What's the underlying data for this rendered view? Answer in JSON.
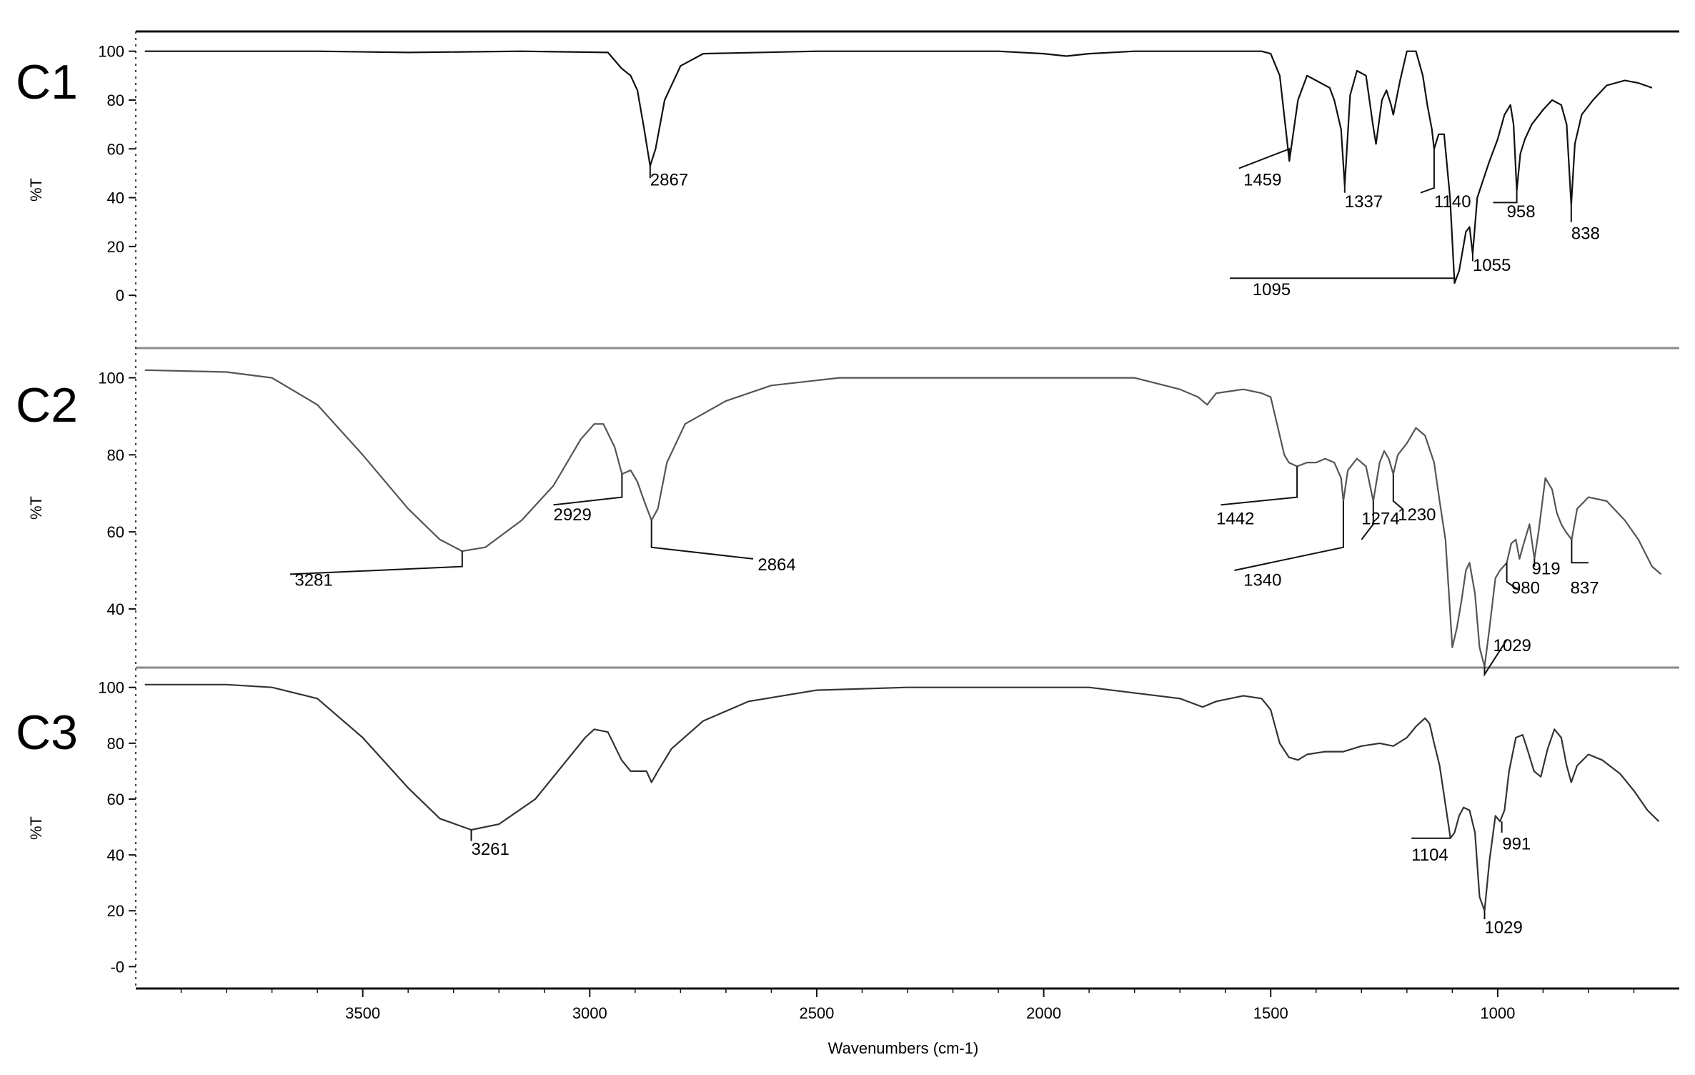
{
  "chart_data": {
    "type": "line",
    "xlabel": "Wavenumbers (cm-1)",
    "xlim": [
      4000,
      600
    ],
    "x_ticks": [
      3500,
      3000,
      2500,
      2000,
      1500,
      1000
    ],
    "colors": {
      "C1": "#111111",
      "C2": "#555555",
      "C3": "#333333",
      "frame": "#8a8a8a"
    },
    "panels": [
      {
        "name": "C1",
        "ylabel": "%T",
        "ylim": [
          -2,
          104
        ],
        "y_ticks": [
          0,
          20,
          40,
          60,
          80,
          100
        ],
        "y_tick_labels": [
          "0",
          "20",
          "40",
          "60",
          "80",
          "100"
        ],
        "points": [
          [
            3980,
            100
          ],
          [
            3600,
            100
          ],
          [
            3400,
            99.5
          ],
          [
            3150,
            100
          ],
          [
            2960,
            99.5
          ],
          [
            2930,
            93
          ],
          [
            2910,
            90
          ],
          [
            2895,
            84
          ],
          [
            2880,
            68
          ],
          [
            2867,
            53
          ],
          [
            2855,
            60
          ],
          [
            2835,
            80
          ],
          [
            2800,
            94
          ],
          [
            2750,
            99
          ],
          [
            2500,
            100
          ],
          [
            2100,
            100
          ],
          [
            2000,
            99
          ],
          [
            1950,
            98
          ],
          [
            1900,
            99
          ],
          [
            1800,
            100
          ],
          [
            1520,
            100
          ],
          [
            1500,
            99
          ],
          [
            1480,
            90
          ],
          [
            1459,
            55
          ],
          [
            1440,
            80
          ],
          [
            1420,
            90
          ],
          [
            1400,
            88
          ],
          [
            1370,
            85
          ],
          [
            1360,
            80
          ],
          [
            1345,
            68
          ],
          [
            1337,
            45
          ],
          [
            1325,
            82
          ],
          [
            1310,
            92
          ],
          [
            1290,
            90
          ],
          [
            1275,
            70
          ],
          [
            1268,
            62
          ],
          [
            1255,
            80
          ],
          [
            1245,
            84
          ],
          [
            1235,
            78
          ],
          [
            1230,
            74
          ],
          [
            1215,
            88
          ],
          [
            1200,
            100
          ],
          [
            1180,
            100
          ],
          [
            1165,
            90
          ],
          [
            1155,
            78
          ],
          [
            1145,
            68
          ],
          [
            1140,
            60
          ],
          [
            1130,
            66
          ],
          [
            1118,
            66
          ],
          [
            1105,
            40
          ],
          [
            1095,
            5
          ],
          [
            1085,
            10
          ],
          [
            1070,
            26
          ],
          [
            1062,
            28
          ],
          [
            1055,
            17
          ],
          [
            1045,
            40
          ],
          [
            1020,
            54
          ],
          [
            1000,
            64
          ],
          [
            985,
            74
          ],
          [
            972,
            78
          ],
          [
            965,
            70
          ],
          [
            958,
            43
          ],
          [
            950,
            58
          ],
          [
            940,
            64
          ],
          [
            925,
            70
          ],
          [
            900,
            76
          ],
          [
            880,
            80
          ],
          [
            860,
            78
          ],
          [
            848,
            70
          ],
          [
            838,
            37
          ],
          [
            830,
            62
          ],
          [
            815,
            74
          ],
          [
            790,
            80
          ],
          [
            760,
            86
          ],
          [
            720,
            88
          ],
          [
            690,
            87
          ],
          [
            660,
            85
          ]
        ],
        "peak_labels": [
          "2867",
          "1459",
          "1337",
          "1140",
          "1095",
          "1055",
          "958",
          "838"
        ]
      },
      {
        "name": "C2",
        "ylabel": "%T",
        "ylim": [
          27,
          104
        ],
        "y_ticks": [
          40,
          60,
          80,
          100
        ],
        "y_tick_labels": [
          "40",
          "60",
          "80",
          "100"
        ],
        "points": [
          [
            3980,
            102
          ],
          [
            3800,
            101.5
          ],
          [
            3700,
            100
          ],
          [
            3600,
            93
          ],
          [
            3500,
            80
          ],
          [
            3400,
            66
          ],
          [
            3330,
            58
          ],
          [
            3281,
            55
          ],
          [
            3230,
            56
          ],
          [
            3150,
            63
          ],
          [
            3080,
            72
          ],
          [
            3020,
            84
          ],
          [
            2990,
            88
          ],
          [
            2970,
            88
          ],
          [
            2945,
            82
          ],
          [
            2929,
            75
          ],
          [
            2910,
            76
          ],
          [
            2895,
            73
          ],
          [
            2880,
            68
          ],
          [
            2864,
            63
          ],
          [
            2850,
            66
          ],
          [
            2830,
            78
          ],
          [
            2790,
            88
          ],
          [
            2700,
            94
          ],
          [
            2600,
            98
          ],
          [
            2450,
            100
          ],
          [
            2300,
            100
          ],
          [
            2100,
            100
          ],
          [
            1900,
            100
          ],
          [
            1800,
            100
          ],
          [
            1700,
            97
          ],
          [
            1660,
            95
          ],
          [
            1640,
            93
          ],
          [
            1620,
            96
          ],
          [
            1560,
            97
          ],
          [
            1520,
            96
          ],
          [
            1500,
            95
          ],
          [
            1480,
            85
          ],
          [
            1470,
            80
          ],
          [
            1460,
            78
          ],
          [
            1442,
            77
          ],
          [
            1420,
            78
          ],
          [
            1400,
            78
          ],
          [
            1380,
            79
          ],
          [
            1360,
            78
          ],
          [
            1345,
            74
          ],
          [
            1340,
            68
          ],
          [
            1330,
            76
          ],
          [
            1310,
            79
          ],
          [
            1290,
            77
          ],
          [
            1274,
            68
          ],
          [
            1260,
            78
          ],
          [
            1250,
            81
          ],
          [
            1240,
            79
          ],
          [
            1230,
            75
          ],
          [
            1220,
            80
          ],
          [
            1200,
            83
          ],
          [
            1180,
            87
          ],
          [
            1160,
            85
          ],
          [
            1140,
            78
          ],
          [
            1128,
            68
          ],
          [
            1115,
            58
          ],
          [
            1100,
            30
          ],
          [
            1090,
            35
          ],
          [
            1080,
            42
          ],
          [
            1070,
            50
          ],
          [
            1062,
            52
          ],
          [
            1050,
            44
          ],
          [
            1040,
            30
          ],
          [
            1029,
            25
          ],
          [
            1018,
            35
          ],
          [
            1005,
            48
          ],
          [
            995,
            50
          ],
          [
            980,
            52
          ],
          [
            970,
            57
          ],
          [
            960,
            58
          ],
          [
            952,
            53
          ],
          [
            945,
            56
          ],
          [
            930,
            62
          ],
          [
            919,
            53
          ],
          [
            910,
            60
          ],
          [
            895,
            74
          ],
          [
            880,
            71
          ],
          [
            870,
            65
          ],
          [
            860,
            62
          ],
          [
            850,
            60
          ],
          [
            837,
            58
          ],
          [
            825,
            66
          ],
          [
            800,
            69
          ],
          [
            760,
            68
          ],
          [
            720,
            63
          ],
          [
            690,
            58
          ],
          [
            660,
            51
          ],
          [
            640,
            49
          ]
        ],
        "peak_labels": [
          "3281",
          "2929",
          "2864",
          "1442",
          "1340",
          "1274",
          "1230",
          "1029",
          "980",
          "919",
          "837"
        ]
      },
      {
        "name": "C3",
        "ylabel": "%T",
        "ylim": [
          -4,
          103
        ],
        "y_ticks": [
          0,
          20,
          40,
          60,
          80,
          100
        ],
        "y_tick_labels": [
          "-0",
          "20",
          "40",
          "60",
          "80",
          "100"
        ],
        "points": [
          [
            3980,
            101
          ],
          [
            3800,
            101
          ],
          [
            3700,
            100
          ],
          [
            3600,
            96
          ],
          [
            3500,
            82
          ],
          [
            3400,
            64
          ],
          [
            3330,
            53
          ],
          [
            3261,
            49
          ],
          [
            3200,
            51
          ],
          [
            3120,
            60
          ],
          [
            3060,
            72
          ],
          [
            3010,
            82
          ],
          [
            2990,
            85
          ],
          [
            2960,
            84
          ],
          [
            2930,
            74
          ],
          [
            2910,
            70
          ],
          [
            2890,
            70
          ],
          [
            2875,
            70
          ],
          [
            2864,
            66
          ],
          [
            2850,
            70
          ],
          [
            2820,
            78
          ],
          [
            2750,
            88
          ],
          [
            2650,
            95
          ],
          [
            2500,
            99
          ],
          [
            2300,
            100
          ],
          [
            2100,
            100
          ],
          [
            1900,
            100
          ],
          [
            1700,
            96
          ],
          [
            1650,
            93
          ],
          [
            1620,
            95
          ],
          [
            1560,
            97
          ],
          [
            1520,
            96
          ],
          [
            1500,
            92
          ],
          [
            1480,
            80
          ],
          [
            1460,
            75
          ],
          [
            1440,
            74
          ],
          [
            1420,
            76
          ],
          [
            1380,
            77
          ],
          [
            1340,
            77
          ],
          [
            1300,
            79
          ],
          [
            1260,
            80
          ],
          [
            1230,
            79
          ],
          [
            1200,
            82
          ],
          [
            1180,
            86
          ],
          [
            1160,
            89
          ],
          [
            1150,
            87
          ],
          [
            1140,
            80
          ],
          [
            1128,
            72
          ],
          [
            1115,
            58
          ],
          [
            1104,
            46
          ],
          [
            1095,
            48
          ],
          [
            1085,
            54
          ],
          [
            1075,
            57
          ],
          [
            1062,
            56
          ],
          [
            1050,
            48
          ],
          [
            1040,
            25
          ],
          [
            1029,
            20
          ],
          [
            1018,
            38
          ],
          [
            1005,
            54
          ],
          [
            995,
            52
          ],
          [
            985,
            56
          ],
          [
            975,
            70
          ],
          [
            960,
            82
          ],
          [
            945,
            83
          ],
          [
            935,
            78
          ],
          [
            920,
            70
          ],
          [
            905,
            68
          ],
          [
            890,
            78
          ],
          [
            875,
            85
          ],
          [
            860,
            82
          ],
          [
            848,
            72
          ],
          [
            838,
            66
          ],
          [
            825,
            72
          ],
          [
            800,
            76
          ],
          [
            770,
            74
          ],
          [
            730,
            69
          ],
          [
            700,
            63
          ],
          [
            670,
            56
          ],
          [
            645,
            52
          ]
        ],
        "peak_labels": [
          "3261",
          "1104",
          "991",
          "1029"
        ]
      }
    ]
  }
}
